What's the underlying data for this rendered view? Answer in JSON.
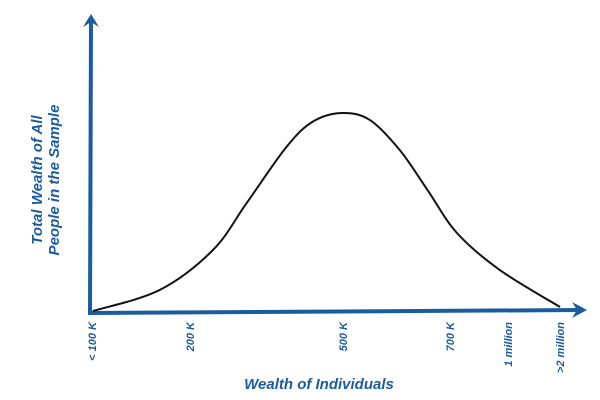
{
  "chart_data": {
    "type": "line",
    "title": "",
    "xlabel": "Wealth of Individuals",
    "ylabel_lines": [
      "Total Wealth of All",
      "People in the Sample"
    ],
    "x_ticks": [
      "< 100 K",
      "200 K",
      "500 K",
      "700 K",
      "1 million",
      ">2 million"
    ],
    "y_ticks": [],
    "grid": false,
    "axis_color": "#1b5c9e",
    "line_color": "#111111",
    "series": [
      {
        "points": [
          {
            "x_tick_pos": 0.01,
            "y_rel": 0
          },
          {
            "x_tick_pos": 0.69,
            "y_rel": 10.6
          },
          {
            "x_tick_pos": 1.15,
            "y_rel": 30.8
          },
          {
            "x_tick_pos": 1.37,
            "y_rel": 54.5
          },
          {
            "x_tick_pos": 1.63,
            "y_rel": 82.8
          },
          {
            "x_tick_pos": 1.8,
            "y_rel": 95.5
          },
          {
            "x_tick_pos": 1.99,
            "y_rel": 100
          },
          {
            "x_tick_pos": 2.25,
            "y_rel": 96.5
          },
          {
            "x_tick_pos": 2.53,
            "y_rel": 81.3
          },
          {
            "x_tick_pos": 2.79,
            "y_rel": 61.1
          },
          {
            "x_tick_pos": 3.12,
            "y_rel": 39.4
          },
          {
            "x_tick_pos": 3.86,
            "y_rel": 20.7
          },
          {
            "x_tick_pos": 5.0,
            "y_rel": 2
          }
        ]
      }
    ]
  }
}
